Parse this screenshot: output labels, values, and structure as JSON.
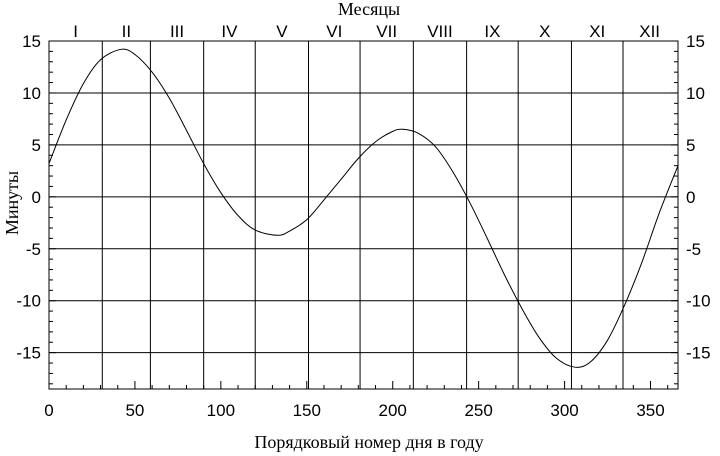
{
  "chart_data": {
    "type": "line",
    "title": "",
    "xlabel": "Порядковый номер дня в году",
    "ylabel": "Минуты",
    "top_axis_label": "Месяцы",
    "xlim": [
      0,
      366
    ],
    "ylim": [
      -18.5,
      15
    ],
    "x_ticks": [
      0,
      50,
      100,
      150,
      200,
      250,
      300,
      350
    ],
    "y_ticks": [
      15,
      10,
      5,
      0,
      -5,
      -10,
      -15
    ],
    "months": [
      "I",
      "II",
      "III",
      "IV",
      "V",
      "VI",
      "VII",
      "VIII",
      "IX",
      "X",
      "XI",
      "XII"
    ],
    "month_boundaries": [
      31,
      59,
      90,
      120,
      151,
      181,
      212,
      243,
      273,
      304,
      334
    ],
    "grid": true,
    "series": [
      {
        "values": [
          [
            0,
            3.2
          ],
          [
            10,
            7.4
          ],
          [
            20,
            10.9
          ],
          [
            30,
            13.2
          ],
          [
            42,
            14.2
          ],
          [
            50,
            13.7
          ],
          [
            60,
            12.0
          ],
          [
            70,
            9.5
          ],
          [
            80,
            6.4
          ],
          [
            90,
            3.2
          ],
          [
            100,
            0.4
          ],
          [
            110,
            -1.8
          ],
          [
            120,
            -3.2
          ],
          [
            133,
            -3.7
          ],
          [
            140,
            -3.3
          ],
          [
            150,
            -2.2
          ],
          [
            160,
            -0.3
          ],
          [
            170,
            1.7
          ],
          [
            180,
            3.7
          ],
          [
            190,
            5.3
          ],
          [
            200,
            6.3
          ],
          [
            206,
            6.5
          ],
          [
            215,
            6.1
          ],
          [
            225,
            4.8
          ],
          [
            235,
            2.4
          ],
          [
            245,
            -0.6
          ],
          [
            255,
            -4.0
          ],
          [
            265,
            -7.5
          ],
          [
            275,
            -10.7
          ],
          [
            285,
            -13.5
          ],
          [
            295,
            -15.5
          ],
          [
            306,
            -16.4
          ],
          [
            315,
            -15.9
          ],
          [
            325,
            -13.8
          ],
          [
            335,
            -10.4
          ],
          [
            345,
            -6.3
          ],
          [
            355,
            -1.6
          ],
          [
            366,
            3.0
          ]
        ]
      }
    ]
  }
}
